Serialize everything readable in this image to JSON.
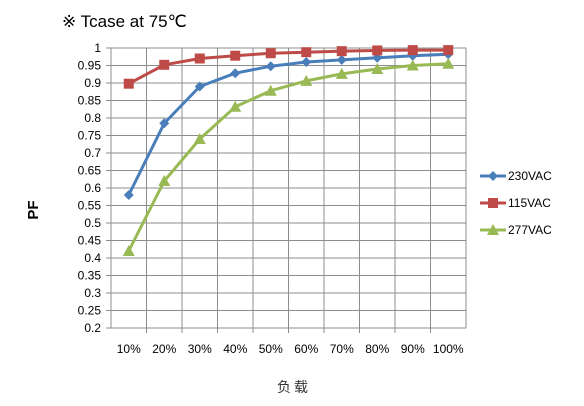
{
  "chart_data": {
    "type": "line",
    "title": "※ Tcase at 75℃",
    "xlabel": "负载",
    "ylabel": "PF",
    "categories": [
      "10%",
      "20%",
      "30%",
      "40%",
      "50%",
      "60%",
      "70%",
      "80%",
      "90%",
      "100%"
    ],
    "ylim": [
      0.2,
      1
    ],
    "yticks": [
      "0.2",
      "0.25",
      "0.3",
      "0.35",
      "0.4",
      "0.45",
      "0.5",
      "0.55",
      "0.6",
      "0.65",
      "0.7",
      "0.75",
      "0.8",
      "0.85",
      "0.9",
      "0.95",
      "1"
    ],
    "grid": true,
    "legend_position": "right",
    "series": [
      {
        "name": "230VAC",
        "color": "#4a7ebb",
        "marker": "diamond",
        "values": [
          0.58,
          0.785,
          0.89,
          0.928,
          0.948,
          0.96,
          0.966,
          0.972,
          0.978,
          0.982
        ]
      },
      {
        "name": "115VAC",
        "color": "#be4b48",
        "marker": "square",
        "values": [
          0.898,
          0.952,
          0.97,
          0.978,
          0.985,
          0.988,
          0.991,
          0.993,
          0.994,
          0.994
        ]
      },
      {
        "name": "277VAC",
        "color": "#98b954",
        "marker": "triangle",
        "values": [
          0.42,
          0.62,
          0.74,
          0.832,
          0.878,
          0.906,
          0.926,
          0.94,
          0.95,
          0.955
        ]
      }
    ]
  }
}
